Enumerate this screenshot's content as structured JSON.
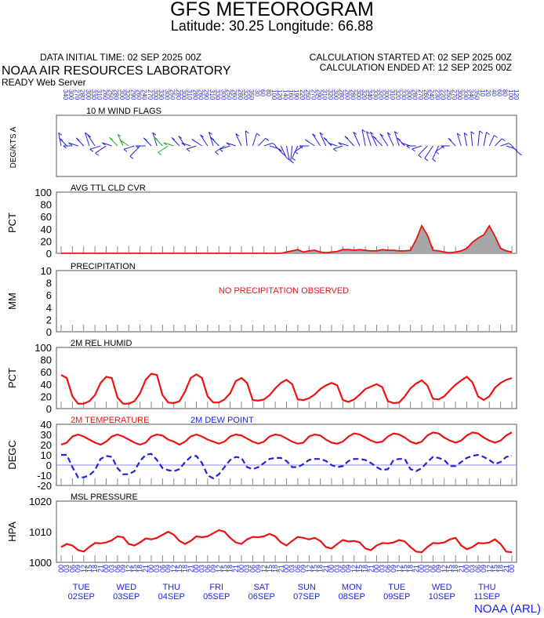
{
  "header": {
    "title": "GFS METEOROGRAM",
    "subtitle": "Latitude: 30.25 Longitude:  66.88",
    "init_time": "DATA INITIAL TIME: 02 SEP 2025 00Z",
    "calc_started": "CALCULATION STARTED AT: 02 SEP 2025 00Z",
    "calc_ended": "CALCULATION ENDED AT: 12 SEP 2025 00Z",
    "lab": "NOAA AIR RESOURCES LABORATORY",
    "server": "READY Web Server"
  },
  "footer": {
    "brand": "NOAA (ARL)"
  },
  "colors": {
    "red": "#ee1111",
    "blue": "#2222dd",
    "green": "#22aa22",
    "fill": "#a6a6a6"
  },
  "time_axis": {
    "hour_labels": [
      "00",
      "03",
      "06",
      "09",
      "12",
      "15",
      "18",
      "21"
    ],
    "days": [
      {
        "dow": "TUE",
        "date": "02SEP"
      },
      {
        "dow": "WED",
        "date": "03SEP"
      },
      {
        "dow": "THU",
        "date": "04SEP"
      },
      {
        "dow": "FRI",
        "date": "05SEP"
      },
      {
        "dow": "SAT",
        "date": "06SEP"
      },
      {
        "dow": "SUN",
        "date": "07SEP"
      },
      {
        "dow": "MON",
        "date": "08SEP"
      },
      {
        "dow": "TUE",
        "date": "09SEP"
      },
      {
        "dow": "WED",
        "date": "10SEP"
      },
      {
        "dow": "THU",
        "date": "11SEP"
      }
    ]
  },
  "chart_data": [
    {
      "type": "wind_barbs",
      "title": "10 M  WIND FLAGS",
      "ylabel": "DEG/KTS  A",
      "dir_deg": [
        340,
        300,
        270,
        280,
        300,
        330,
        310,
        260,
        250,
        280,
        300,
        320,
        290,
        260,
        240,
        270,
        300,
        330,
        300,
        250,
        280,
        300,
        310,
        280,
        260,
        290,
        310,
        330,
        300,
        250,
        260,
        280,
        320,
        350,
        30,
        60,
        80,
        100,
        120,
        140,
        160,
        190,
        220,
        250,
        270,
        290,
        310,
        320,
        300,
        280,
        260,
        280,
        300,
        320,
        340,
        330,
        320,
        300,
        310,
        320,
        330,
        300,
        280,
        270,
        260,
        240,
        230,
        220,
        250,
        270,
        300,
        330,
        340,
        350,
        10,
        20,
        40,
        60,
        80,
        100,
        120
      ],
      "speed_kt": [
        4,
        6,
        8,
        9,
        7,
        6,
        9,
        12,
        14,
        10,
        8,
        6,
        9,
        12,
        14,
        10,
        7,
        6,
        9,
        12,
        11,
        8,
        6,
        8,
        10,
        12,
        9,
        7,
        8,
        10,
        12,
        9,
        7,
        6,
        5,
        6,
        7,
        8,
        7,
        6,
        5,
        6,
        7,
        8,
        9,
        10,
        11,
        9,
        8,
        7,
        9,
        11,
        12,
        10,
        9,
        8,
        10,
        12,
        11,
        9,
        8,
        7,
        8,
        9,
        10,
        11,
        12,
        9,
        8,
        7,
        6,
        5,
        4,
        5,
        6,
        5,
        4,
        5,
        6,
        5,
        4
      ]
    },
    {
      "type": "area",
      "title": "AVG TTL CLD CVR",
      "ylabel": "PCT",
      "ylim": [
        0,
        100
      ],
      "yticks": [
        0,
        20,
        40,
        60,
        80,
        100
      ],
      "values": [
        0,
        0,
        0,
        0,
        0,
        0,
        0,
        0,
        0,
        0,
        0,
        0,
        0,
        0,
        0,
        0,
        0,
        0,
        0,
        0,
        0,
        0,
        0,
        0,
        0,
        0,
        0,
        0,
        0,
        0,
        0,
        0,
        0,
        0,
        0,
        0,
        0,
        0,
        0,
        0,
        2,
        4,
        6,
        2,
        4,
        5,
        2,
        1,
        2,
        3,
        6,
        6,
        5,
        6,
        5,
        4,
        4,
        6,
        5,
        5,
        4,
        4,
        5,
        22,
        45,
        30,
        5,
        4,
        2,
        1,
        2,
        4,
        8,
        18,
        25,
        30,
        45,
        28,
        8,
        4,
        2
      ]
    },
    {
      "type": "line",
      "title": "PRECIPITATION",
      "ylabel": "MM",
      "ylim": [
        0,
        10
      ],
      "yticks": [
        0,
        2,
        4,
        6,
        8,
        10
      ],
      "annotation": "NO PRECIPITATION OBSERVED",
      "values": []
    },
    {
      "type": "line",
      "title": "2M REL HUMID",
      "ylabel": "PCT",
      "ylim": [
        0,
        100
      ],
      "yticks": [
        0,
        20,
        40,
        60,
        80,
        100
      ],
      "values": [
        55,
        50,
        20,
        8,
        8,
        12,
        22,
        42,
        52,
        50,
        18,
        8,
        8,
        12,
        25,
        47,
        57,
        55,
        22,
        10,
        9,
        12,
        28,
        50,
        56,
        50,
        20,
        10,
        10,
        15,
        25,
        45,
        50,
        42,
        14,
        13,
        15,
        22,
        33,
        42,
        47,
        40,
        15,
        14,
        17,
        23,
        32,
        38,
        42,
        38,
        14,
        11,
        15,
        23,
        32,
        36,
        40,
        35,
        12,
        9,
        10,
        20,
        33,
        41,
        46,
        38,
        16,
        15,
        20,
        30,
        39,
        46,
        52,
        43,
        20,
        14,
        20,
        34,
        42,
        47,
        50
      ]
    },
    {
      "type": "line",
      "title_left": "2M TEMPERATURE",
      "title_right": "2M   DEW POINT",
      "ylabel": "DEGC",
      "ylim": [
        -20,
        40
      ],
      "yticks": [
        -20,
        -10,
        0,
        10,
        20,
        30,
        40
      ],
      "series": [
        {
          "name": "2M TEMPERATURE",
          "values": [
            20,
            22,
            28,
            30,
            28,
            25,
            22,
            20,
            23,
            28,
            30,
            28,
            25,
            22,
            20,
            22,
            28,
            30,
            29,
            25,
            23,
            20,
            23,
            28,
            30,
            28,
            25,
            23,
            21,
            23,
            28,
            30,
            29,
            26,
            23,
            21,
            23,
            28,
            30,
            29,
            26,
            23,
            21,
            22,
            28,
            30,
            29,
            25,
            22,
            21,
            23,
            28,
            31,
            30,
            27,
            24,
            22,
            23,
            28,
            31,
            30,
            27,
            23,
            21,
            23,
            29,
            32,
            31,
            27,
            24,
            22,
            24,
            29,
            32,
            31,
            27,
            24,
            22,
            24,
            29,
            32
          ]
        },
        {
          "name": "2M   DEW POINT",
          "values": [
            10,
            10,
            -2,
            -12,
            -12,
            -10,
            -5,
            6,
            9,
            8,
            -3,
            -9,
            -9,
            -6,
            4,
            10,
            11,
            5,
            -3,
            -5,
            -6,
            -4,
            3,
            8,
            9,
            2,
            -10,
            -13,
            -9,
            -2,
            5,
            8,
            7,
            -2,
            -4,
            -2,
            2,
            6,
            7,
            7,
            4,
            -2,
            -2,
            1,
            5,
            6,
            6,
            4,
            0,
            -2,
            -1,
            4,
            6,
            6,
            5,
            2,
            -2,
            -5,
            -4,
            5,
            6,
            6,
            -4,
            -6,
            -3,
            3,
            8,
            7,
            5,
            -1,
            -1,
            3,
            7,
            9,
            10,
            8,
            5,
            1,
            3,
            8,
            9
          ]
        }
      ]
    },
    {
      "type": "line",
      "title": "MSL PRESSURE",
      "ylabel": "HPA",
      "ylim": [
        1000,
        1020
      ],
      "yticks": [
        1000,
        1010,
        1020
      ],
      "values": [
        1005,
        1006,
        1005.5,
        1004,
        1003.5,
        1005,
        1006.3,
        1006.2,
        1006.5,
        1007.2,
        1008.5,
        1008.2,
        1006,
        1005.5,
        1006.5,
        1007.8,
        1007.5,
        1008,
        1009,
        1010,
        1009,
        1007,
        1006,
        1007,
        1008.5,
        1008.2,
        1008.5,
        1009.5,
        1010.5,
        1010,
        1008,
        1006.5,
        1006,
        1007.5,
        1008.3,
        1008.2,
        1008.5,
        1009.3,
        1008.5,
        1006.5,
        1005.5,
        1007,
        1008.3,
        1008,
        1007.5,
        1008,
        1007,
        1005,
        1004.5,
        1006,
        1007.3,
        1006.8,
        1007,
        1006.5,
        1004.5,
        1004,
        1005.5,
        1006.3,
        1006.2,
        1006.5,
        1007.3,
        1006.8,
        1005,
        1003.5,
        1003.3,
        1005,
        1006.3,
        1006.2,
        1006.5,
        1007.5,
        1008,
        1005.5,
        1004.3,
        1005,
        1006.3,
        1006.2,
        1006.5,
        1007.5,
        1006,
        1003.5,
        1003.3
      ]
    }
  ]
}
